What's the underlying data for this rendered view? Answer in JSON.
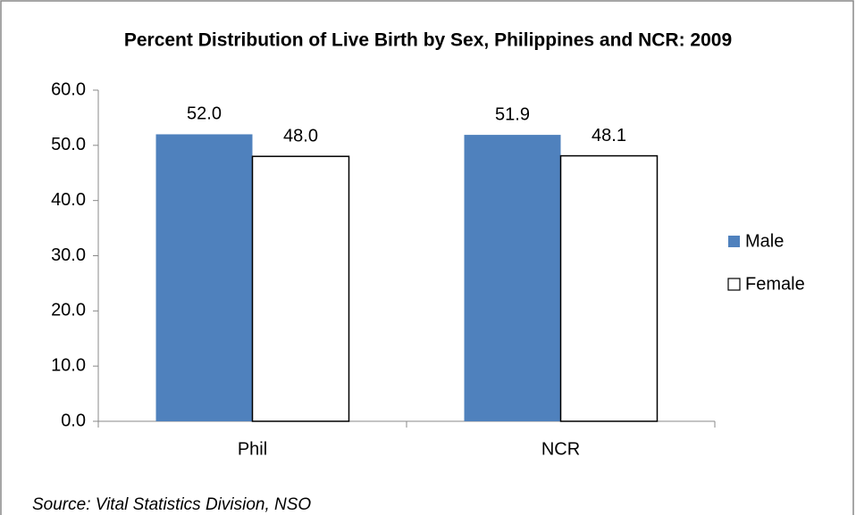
{
  "chart_data": {
    "type": "bar",
    "title": "Percent Distribution of Live Birth by Sex, Philippines and NCR: 2009",
    "categories": [
      "Phil",
      "NCR"
    ],
    "series": [
      {
        "name": "Male",
        "color": "#4f81bd",
        "values": [
          52.0,
          51.9
        ],
        "value_labels": [
          "52.0",
          "51.9"
        ]
      },
      {
        "name": "Female",
        "color": "#ffffff",
        "values": [
          48.0,
          48.1
        ],
        "value_labels": [
          "48.0",
          "48.1"
        ]
      }
    ],
    "ylim": [
      0,
      60
    ],
    "yticks": [
      {
        "value": 0,
        "label": "0.0"
      },
      {
        "value": 10,
        "label": "10.0"
      },
      {
        "value": 20,
        "label": "20.0"
      },
      {
        "value": 30,
        "label": "30.0"
      },
      {
        "value": 40,
        "label": "40.0"
      },
      {
        "value": 50,
        "label": "50.0"
      },
      {
        "value": 60,
        "label": "60.0"
      }
    ],
    "grid": false,
    "legend": "right",
    "source": "Source: Vital Statistics Division, NSO"
  }
}
